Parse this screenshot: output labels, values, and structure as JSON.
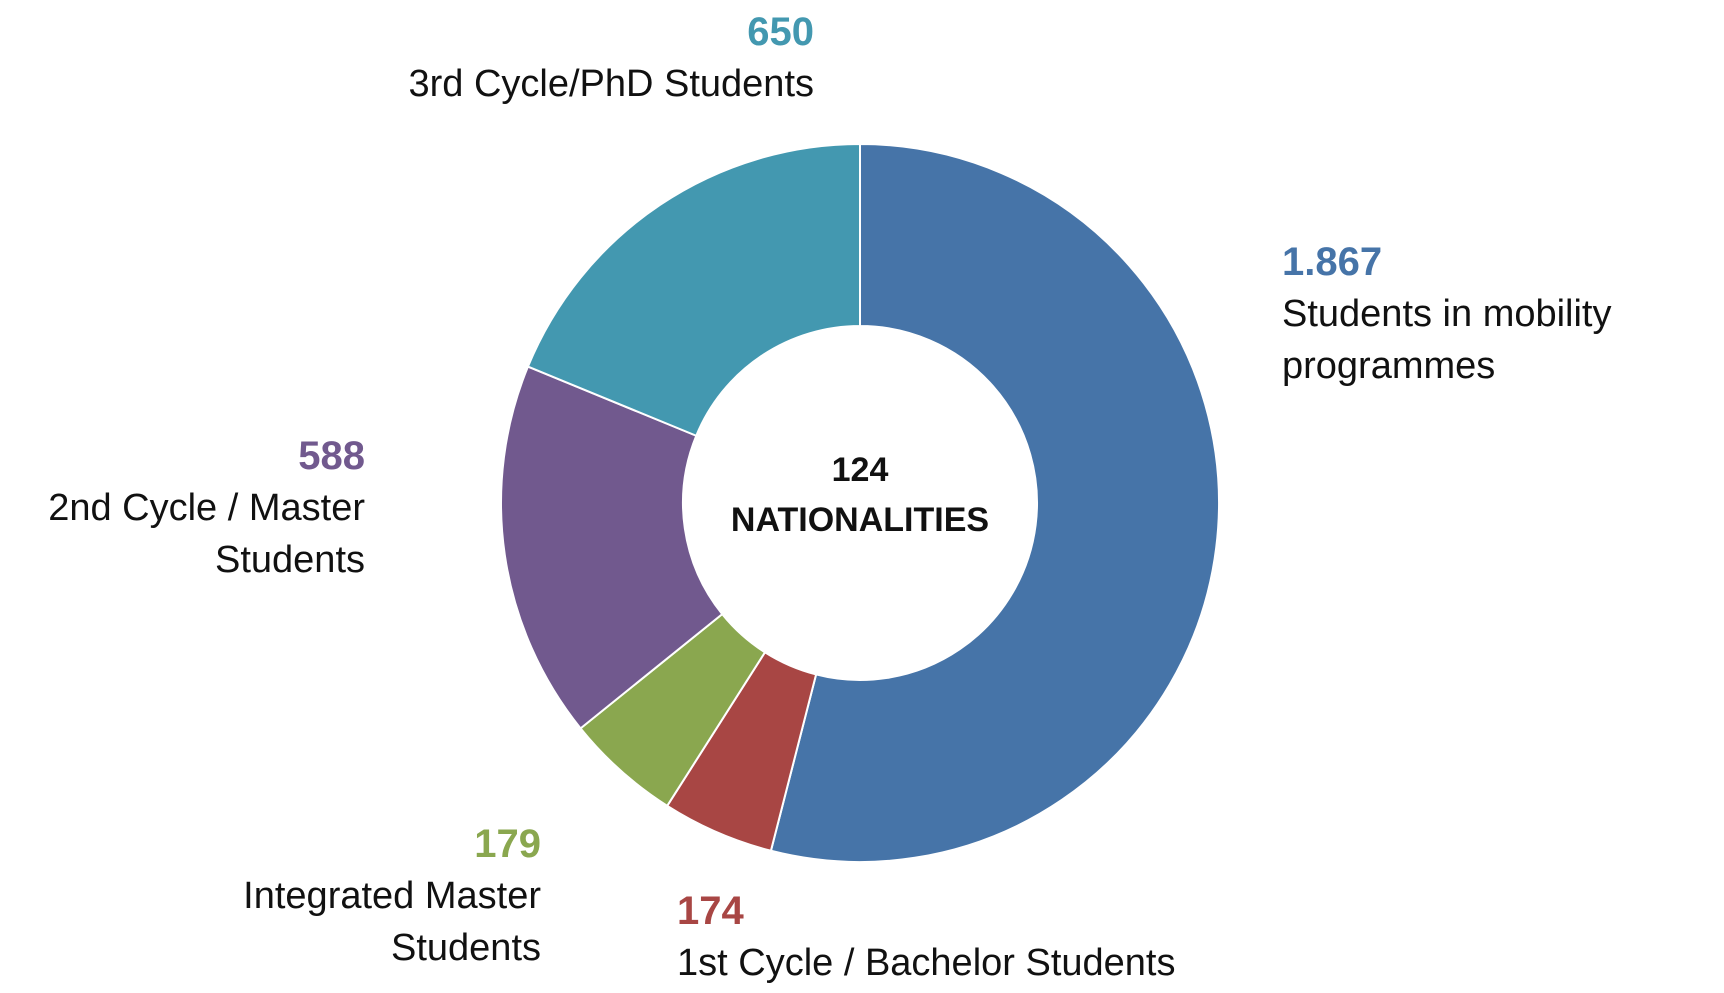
{
  "chart_data": {
    "type": "donut",
    "center_text": [
      "124",
      "NATIONALITIES"
    ],
    "categories": [
      "Students in mobility programmes",
      "1st Cycle / Bachelor Students",
      "Integrated Master Students",
      "2nd Cycle / Master Students",
      "3rd Cycle/PhD Students"
    ],
    "values": [
      1867,
      174,
      179,
      588,
      650
    ],
    "value_labels": [
      "1.867",
      "174",
      "179",
      "588",
      "650"
    ],
    "colors": [
      "#4674a8",
      "#a84644",
      "#8aa74f",
      "#71598e",
      "#4398b0"
    ]
  }
}
